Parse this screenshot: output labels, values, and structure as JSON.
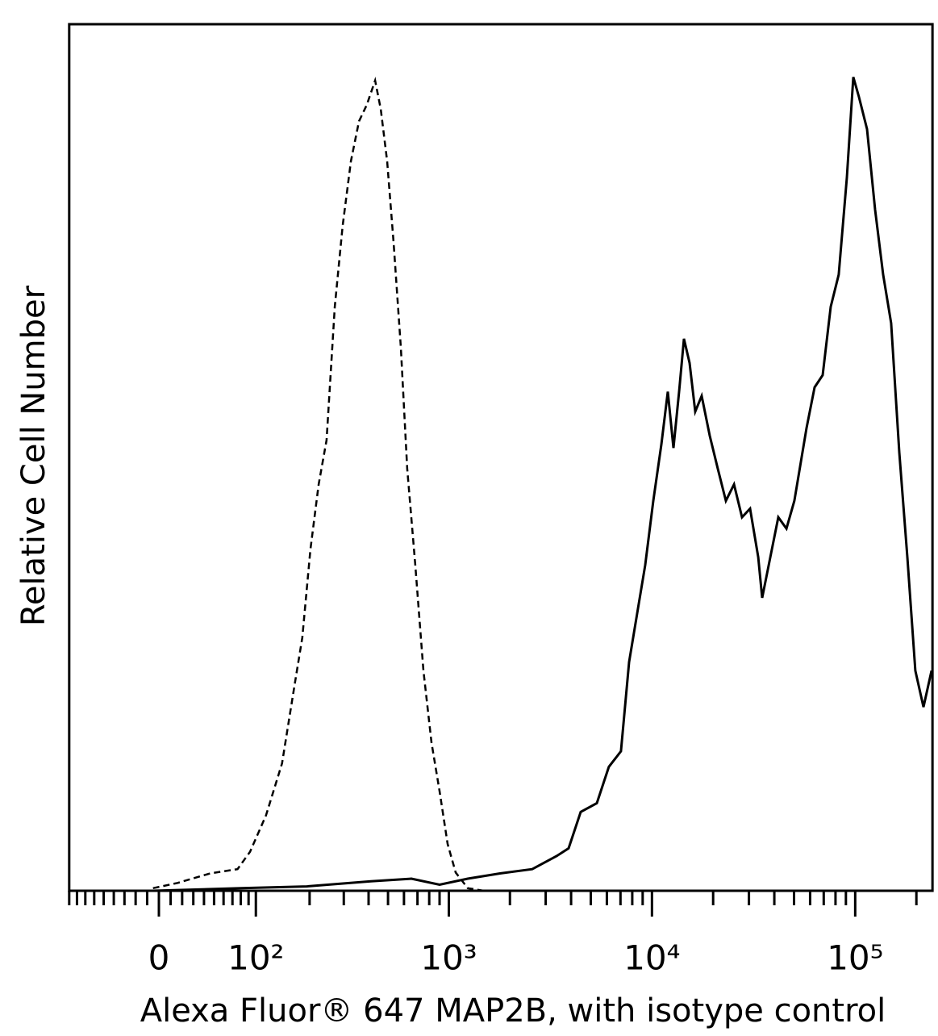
{
  "chart_data": {
    "type": "line",
    "xlabel": "Alexa Fluor® 647 MAP2B, with isotype control",
    "ylabel": "Relative Cell Number",
    "xscale": "biexponential",
    "xlim": [
      -90,
      240000
    ],
    "ylim": [
      0,
      100
    ],
    "xticks": [
      {
        "value": 0,
        "label": "0"
      },
      {
        "value": 100,
        "label": "10²"
      },
      {
        "value": 1000,
        "label": "10³"
      },
      {
        "value": 10000,
        "label": "10⁴"
      },
      {
        "value": 100000,
        "label": "10⁵"
      }
    ],
    "xminorticks": [
      -90,
      -80,
      -70,
      -60,
      -50,
      -40,
      -30,
      -20,
      -10,
      10,
      20,
      30,
      40,
      50,
      60,
      70,
      80,
      90,
      200,
      300,
      400,
      500,
      600,
      700,
      800,
      900,
      2000,
      3000,
      4000,
      5000,
      6000,
      7000,
      8000,
      9000,
      20000,
      30000,
      40000,
      50000,
      60000,
      70000,
      80000,
      90000,
      200000
    ],
    "series": [
      {
        "color": "#000000",
        "style": "dashed",
        "x": [
          -5,
          16,
          46,
          76,
          92,
          115,
          142,
          166,
          183,
          202,
          223,
          245,
          270,
          296,
          326,
          358,
          392,
          431,
          460,
          495,
          533,
          579,
          623,
          683,
          749,
          821,
          900,
          986,
          1081,
          1240,
          1489,
          240000
        ],
        "values": [
          0.3,
          0.9,
          2.0,
          2.5,
          4.5,
          8.7,
          14.7,
          23.6,
          29.2,
          39.4,
          46.9,
          52.0,
          67.4,
          76.7,
          84.2,
          88.8,
          90.7,
          93.5,
          90.2,
          84.2,
          74.8,
          62.7,
          48.7,
          37.6,
          25.4,
          17.1,
          11.5,
          5.4,
          2.1,
          0.3,
          0,
          0
        ]
      },
      {
        "color": "#000000",
        "style": "solid",
        "x": [
          -5,
          81,
          193,
          411,
          653,
          900,
          1240,
          1788,
          2576,
          3393,
          3889,
          4462,
          5355,
          6139,
          7039,
          7717,
          8453,
          9266,
          10150,
          11120,
          11966,
          12758,
          13600,
          14370,
          15320,
          16330,
          17570,
          19250,
          21090,
          23110,
          25330,
          27750,
          30400,
          33320,
          34850,
          38210,
          41850,
          45900,
          50210,
          57600,
          63110,
          69190,
          75790,
          82990,
          90980,
          97880,
          104300,
          114300,
          125250,
          137200,
          150300,
          164800,
          180500,
          197700,
          216700,
          237400
        ],
        "values": [
          0,
          0.3,
          0.5,
          1.1,
          1.4,
          0.7,
          1.4,
          2.0,
          2.5,
          4.0,
          4.9,
          9.1,
          10.1,
          14.3,
          16.1,
          26.4,
          32.0,
          37.6,
          45.0,
          51.5,
          57.6,
          51.1,
          57.6,
          63.7,
          60.9,
          55.3,
          57.1,
          52.5,
          48.7,
          45.0,
          46.9,
          43.1,
          44.1,
          38.5,
          33.8,
          38.5,
          43.1,
          41.8,
          45.0,
          53.4,
          58.1,
          59.5,
          67.4,
          71.1,
          82.3,
          93.9,
          91.6,
          87.9,
          78.6,
          71.1,
          65.5,
          50.6,
          38.5,
          25.4,
          21.2,
          25.4
        ]
      }
    ]
  }
}
